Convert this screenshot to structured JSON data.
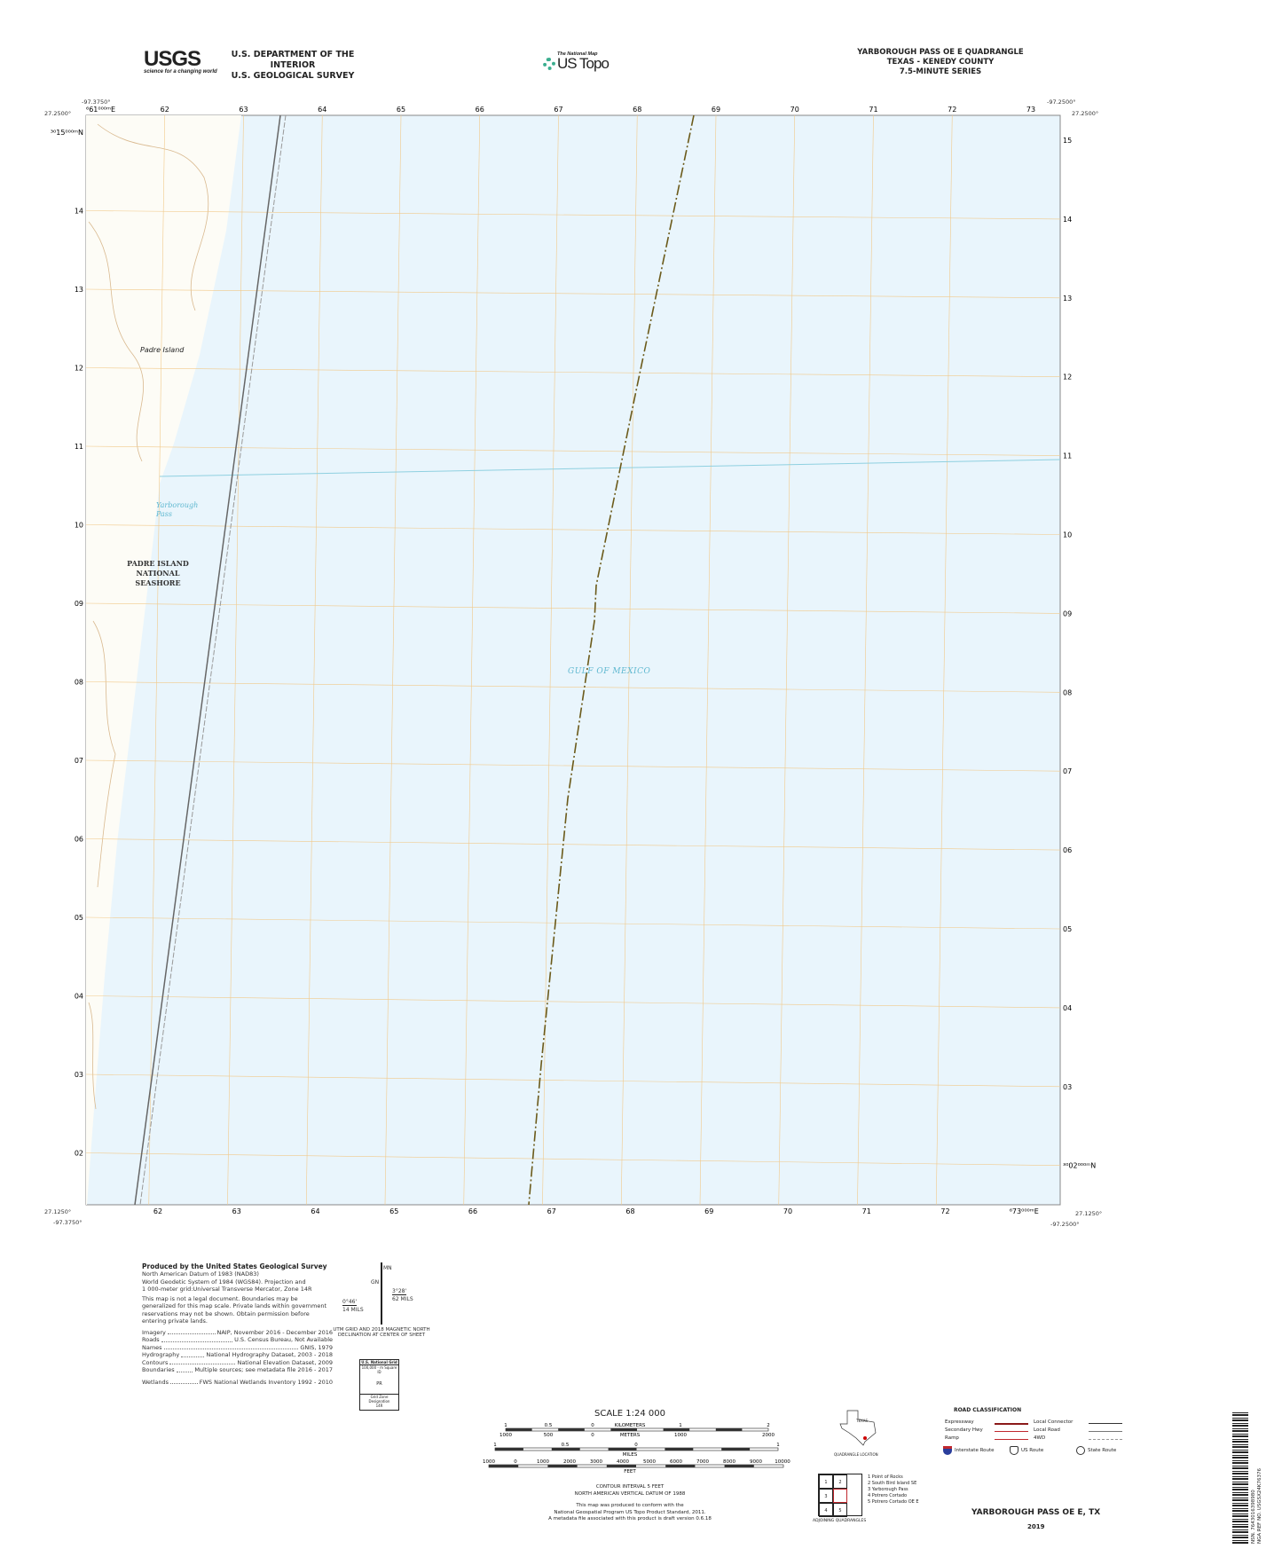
{
  "header": {
    "usgs_logo": "USGS",
    "usgs_tagline": "science for a changing world",
    "dept_line1": "U.S. DEPARTMENT OF THE INTERIOR",
    "dept_line2": "U.S. GEOLOGICAL SURVEY",
    "national_map": "The National Map",
    "us_topo": "US Topo",
    "quad_title": "YARBOROUGH PASS OE E QUADRANGLE",
    "quad_state": "TEXAS - KENEDY COUNTY",
    "quad_series": "7.5-MINUTE SERIES"
  },
  "map": {
    "corners": {
      "top_left_lon": "-97.3750°",
      "top_left_lat": "27.2500°",
      "top_right_lon": "-97.2500°",
      "top_right_lat": "27.2500°",
      "bottom_left_lon": "-97.3750°",
      "bottom_left_lat": "27.1250°",
      "bottom_right_lon": "-97.2500°",
      "bottom_right_lat": "27.1250°"
    },
    "top_eastings": [
      "⁶61⁰⁰⁰ᵐE",
      "62",
      "63",
      "64",
      "65",
      "66",
      "67",
      "68",
      "69",
      "70",
      "71",
      "72",
      "73"
    ],
    "bottom_eastings": [
      "62",
      "63",
      "64",
      "65",
      "66",
      "67",
      "68",
      "69",
      "70",
      "71",
      "72",
      "⁶73⁰⁰⁰ᵐE"
    ],
    "left_northings": [
      "³⁰15⁰⁰⁰ᵐN",
      "14",
      "13",
      "12",
      "11",
      "10",
      "09",
      "08",
      "07",
      "06",
      "05",
      "04",
      "03",
      "02"
    ],
    "right_northings": [
      "15",
      "14",
      "13",
      "12",
      "11",
      "10",
      "09",
      "08",
      "07",
      "06",
      "05",
      "04",
      "03",
      "³⁰02⁰⁰⁰ᵐN"
    ],
    "labels": {
      "padre_island": "Padre Island",
      "yarborough": "Yarborough",
      "pass": "Pass",
      "seashore_1": "PADRE ISLAND",
      "seashore_2": "NATIONAL SEASHORE",
      "gulf": "GULF OF MEXICO"
    },
    "colors": {
      "water": "#e9f5fc",
      "land": "#fdfcf6",
      "grid": "#f1c98a",
      "contour": "#d9b98f",
      "boundary": "#6b5a1a",
      "water_text": "#5fb8d0"
    }
  },
  "footer": {
    "produced_by": "Produced by the United States Geological Survey",
    "notes": [
      "North American Datum of 1983 (NAD83)",
      "World Geodetic System of 1984 (WGS84). Projection and",
      "1 000-meter grid:Universal Transverse Mercator, Zone 14R",
      "This map is not a legal document. Boundaries may be",
      "generalized for this map scale. Private lands within government",
      "reservations may not be shown. Obtain permission before",
      "entering private lands."
    ],
    "sources": [
      {
        "k": "Imagery",
        "v": "NAIP, November 2016 - December 2016"
      },
      {
        "k": "Roads",
        "v": "U.S. Census Bureau, Not Available"
      },
      {
        "k": "Names",
        "v": "GNIS, 1979"
      },
      {
        "k": "Hydrography",
        "v": "National Hydrography Dataset, 2003 - 2018"
      },
      {
        "k": "Contours",
        "v": "National Elevation Dataset, 2009"
      },
      {
        "k": "Boundaries",
        "v": "Multiple sources; see metadata file 2016 - 2017"
      },
      {
        "k": "Wetlands",
        "v": "FWS National Wetlands Inventory 1992 - 2010"
      }
    ],
    "declination": {
      "mn": "MN",
      "gn": "GN",
      "left_angle": "0°46'",
      "left_mils": "14 MILS",
      "right_angle": "3°28'",
      "right_mils": "62 MILS",
      "caption1": "UTM GRID AND 2018 MAGNETIC NORTH",
      "caption2": "DECLINATION AT CENTER OF SHEET"
    },
    "grid_box": {
      "title": "U.S. National Grid",
      "sub": "100,000 - m Square ID",
      "id": "PR",
      "zone_label": "Grid Zone Designation",
      "zone": "14R"
    },
    "scale": {
      "title": "SCALE 1:24 000",
      "km_ticks": [
        "1",
        "0.5",
        "0",
        "1",
        "2"
      ],
      "km": "KILOMETERS",
      "m_ticks": [
        "1000",
        "500",
        "0",
        "1000",
        "2000"
      ],
      "m": "METERS",
      "mi_ticks": [
        "1",
        "0.5",
        "0",
        "1"
      ],
      "mi": "MILES",
      "ft_ticks": [
        "1000",
        "0",
        "1000",
        "2000",
        "3000",
        "4000",
        "5000",
        "6000",
        "7000",
        "8000",
        "9000",
        "10000"
      ],
      "ft": "FEET"
    },
    "contour": "CONTOUR INTERVAL 5 FEET",
    "datum": "NORTH AMERICAN VERTICAL DATUM OF 1988",
    "standard": [
      "This map was produced to conform with the",
      "National Geospatial Program US Topo Product Standard, 2011.",
      "A metadata file associated with this product is draft version 0.6.18"
    ],
    "location": {
      "state": "TEXAS",
      "caption": "QUADRANGLE LOCATION"
    },
    "adjoining": {
      "cells": [
        "1",
        "2",
        "3",
        "4",
        "5"
      ],
      "caption": "ADJOINING QUADRANGLES",
      "names": [
        "1 Point of Rocks",
        "2 South Bird Island SE",
        "3 Yarborough Pass",
        "4 Potrero Cortado",
        "5 Potrero Cortado OE E"
      ]
    },
    "roads": {
      "title": "ROAD CLASSIFICATION",
      "items": [
        "Expressway",
        "Secondary Hwy",
        "Ramp",
        "Local Connector",
        "Local Road",
        "4WD"
      ],
      "routes": [
        "Interstate Route",
        "US Route",
        "State Route"
      ]
    },
    "sheet_name": "YARBOROUGH PASS OE E,  TX",
    "year": "2019",
    "barcode": {
      "nsn": "NSN. 7643016398980",
      "nga": "NGA REF NO. USGSX24K76376"
    }
  }
}
